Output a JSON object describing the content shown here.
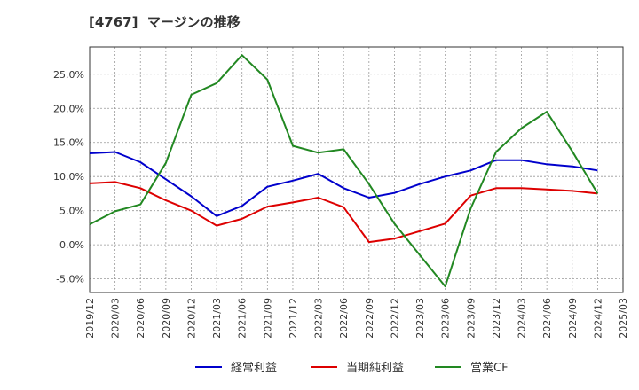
{
  "chart_data": {
    "type": "line",
    "title": "[4767]  マージンの推移",
    "xlabel": "",
    "ylabel": "",
    "x_ticks": [
      "2019/12",
      "2020/03",
      "2020/06",
      "2020/09",
      "2020/12",
      "2021/03",
      "2021/06",
      "2021/09",
      "2021/12",
      "2022/03",
      "2022/06",
      "2022/09",
      "2022/12",
      "2023/03",
      "2023/06",
      "2023/09",
      "2023/12",
      "2024/03",
      "2024/06",
      "2024/09",
      "2024/12",
      "2025/03"
    ],
    "y_ticks": [
      "25.0%",
      "20.0%",
      "15.0%",
      "10.0%",
      "5.0%",
      "0.0%",
      "-5.0%"
    ],
    "y_tick_values": [
      25,
      20,
      15,
      10,
      5,
      0,
      -5
    ],
    "ylim": [
      -7,
      29
    ],
    "grid": true,
    "legend_position": "bottom",
    "categories": [
      "2019/12",
      "2020/03",
      "2020/06",
      "2020/09",
      "2020/12",
      "2021/03",
      "2021/06",
      "2021/09",
      "2021/12",
      "2022/03",
      "2022/06",
      "2022/09",
      "2022/12",
      "2023/03",
      "2023/06",
      "2023/09",
      "2023/12",
      "2024/03",
      "2024/06",
      "2024/09",
      "2024/12"
    ],
    "series": [
      {
        "name": "経常利益",
        "color": "#0000cc",
        "values": [
          13.4,
          13.6,
          12.1,
          9.6,
          7.1,
          4.2,
          5.7,
          8.5,
          9.4,
          10.4,
          8.3,
          6.9,
          7.6,
          8.9,
          10.0,
          10.9,
          12.4,
          12.4,
          11.8,
          11.5,
          10.9
        ]
      },
      {
        "name": "当期純利益",
        "color": "#dd0000",
        "values": [
          9.0,
          9.2,
          8.3,
          6.5,
          5.0,
          2.8,
          3.8,
          5.6,
          6.2,
          6.9,
          5.5,
          0.4,
          0.9,
          2.0,
          3.1,
          7.2,
          8.3,
          8.3,
          8.1,
          7.9,
          7.5
        ]
      },
      {
        "name": "営業CF",
        "color": "#228822",
        "values": [
          3.0,
          4.9,
          5.9,
          12.0,
          22.0,
          23.7,
          27.8,
          24.2,
          14.5,
          13.5,
          14.0,
          8.9,
          3.1,
          -1.5,
          -6.1,
          5.3,
          13.6,
          17.1,
          19.5,
          13.7,
          7.5
        ]
      }
    ]
  }
}
